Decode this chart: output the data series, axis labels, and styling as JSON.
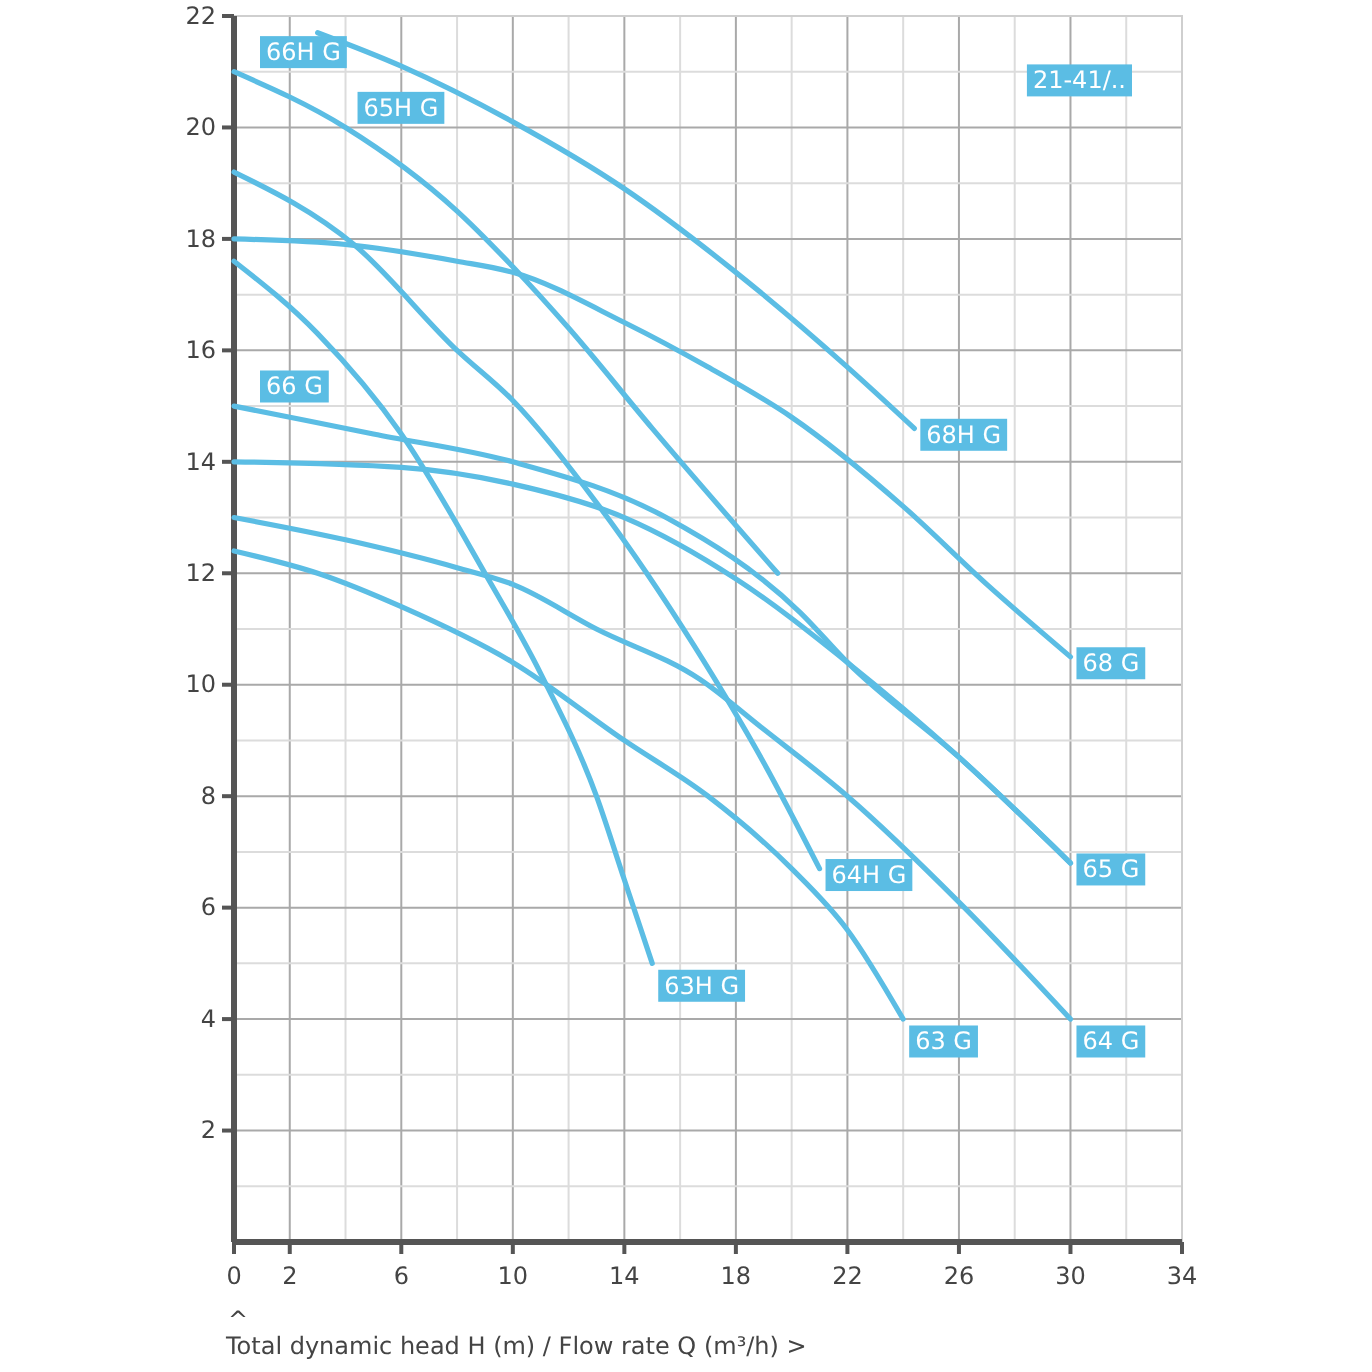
{
  "chart_data": {
    "type": "line",
    "xlabel": "Total dynamic head H (m) / Flow rate Q (m³/h) >",
    "xlim": [
      0,
      34
    ],
    "ylim": [
      0,
      22
    ],
    "xticks": [
      0,
      2,
      {
        "value": 4,
        "label": null
      },
      6,
      {
        "value": 8,
        "label": null
      },
      10,
      {
        "value": 12,
        "label": null
      },
      14,
      {
        "value": 16,
        "label": null
      },
      18,
      {
        "value": 20,
        "label": null
      },
      22,
      {
        "value": 24,
        "label": null
      },
      26,
      {
        "value": 28,
        "label": null
      },
      30,
      {
        "value": 32,
        "label": null
      },
      34
    ],
    "yticks": [
      {
        "value": 0,
        "label": null
      },
      {
        "value": 1,
        "label": null
      },
      2,
      {
        "value": 3,
        "label": null
      },
      4,
      {
        "value": 5,
        "label": null
      },
      6,
      {
        "value": 7,
        "label": null
      },
      8,
      {
        "value": 9,
        "label": null
      },
      10,
      {
        "value": 11,
        "label": null
      },
      12,
      {
        "value": 13,
        "label": null
      },
      14,
      {
        "value": 15,
        "label": null
      },
      16,
      {
        "value": 17,
        "label": null
      },
      18,
      {
        "value": 19,
        "label": null
      },
      20,
      {
        "value": 21,
        "label": null
      },
      22
    ],
    "grid": true,
    "marker": "none",
    "line_style": "solid",
    "series": [
      {
        "color": "#5bbde4",
        "x": [
          3,
          6,
          10,
          14,
          18,
          22,
          24.4
        ],
        "values": [
          21.7,
          21.1,
          20.1,
          18.9,
          17.4,
          15.7,
          14.6
        ]
      },
      {
        "color": "#5bbde4",
        "x": [
          0,
          4,
          8,
          10,
          12,
          15,
          19.5
        ],
        "values": [
          21,
          20,
          18.5,
          17.5,
          16.4,
          14.6,
          12
        ]
      },
      {
        "color": "#5bbde4",
        "x": [
          0,
          4.3,
          8,
          10,
          13.1,
          16.5,
          19,
          21
        ],
        "values": [
          19.2,
          17.9,
          16,
          15.1,
          13.2,
          10.7,
          8.6,
          6.7
        ]
      },
      {
        "color": "#5bbde4",
        "x": [
          0,
          4,
          8,
          10,
          14,
          17,
          20,
          24,
          27,
          30
        ],
        "values": [
          18,
          17.9,
          17.6,
          17.4,
          16.5,
          15.7,
          14.8,
          13.2,
          11.8,
          10.5
        ]
      },
      {
        "color": "#5bbde4",
        "x": [
          0,
          3,
          6,
          9,
          11,
          13,
          14,
          15
        ],
        "values": [
          17.6,
          16.3,
          14.5,
          12,
          10.2,
          8,
          6.5,
          5
        ]
      },
      {
        "color": "#5bbde4",
        "x": [
          0,
          5,
          10,
          15.5,
          20.3,
          22,
          26,
          30
        ],
        "values": [
          15,
          14.5,
          14,
          13,
          11.3,
          10.4,
          8.7,
          6.8
        ]
      },
      {
        "color": "#5bbde4",
        "x": [
          0,
          6,
          10,
          14,
          18,
          22,
          26,
          30
        ],
        "values": [
          14,
          13.9,
          13.6,
          13,
          11.9,
          10.4,
          8.7,
          6.8
        ]
      },
      {
        "color": "#5bbde4",
        "x": [
          0,
          4,
          8,
          10,
          13,
          16.7,
          19,
          22,
          26,
          30
        ],
        "values": [
          13,
          12.6,
          12.1,
          11.8,
          11,
          10.1,
          9.2,
          8,
          6.1,
          4
        ]
      },
      {
        "color": "#5bbde4",
        "x": [
          0,
          3,
          6,
          10,
          14,
          17,
          20,
          22,
          24
        ],
        "values": [
          12.4,
          12,
          11.4,
          10.4,
          9,
          8,
          6.7,
          5.6,
          4
        ]
      }
    ],
    "annotations": [
      "21-41/..",
      "^",
      {
        "text": "66H G",
        "x": 0,
        "y": 21
      },
      {
        "text": "65H G",
        "x": 4,
        "y": 20
      },
      {
        "text": "66 G",
        "x": 0,
        "y": 15
      },
      {
        "text": "68H G",
        "x": 24.4,
        "y": 14.6
      },
      {
        "text": "68 G",
        "x": 30,
        "y": 10.5
      },
      {
        "text": "64H G",
        "x": 21,
        "y": 6.7
      },
      {
        "text": "65 G",
        "x": 30,
        "y": 6.8
      },
      {
        "text": "63H G",
        "x": 15,
        "y": 5
      },
      {
        "text": "63 G",
        "x": 24,
        "y": 4
      },
      {
        "text": "64 G",
        "x": 30,
        "y": 4
      }
    ]
  }
}
